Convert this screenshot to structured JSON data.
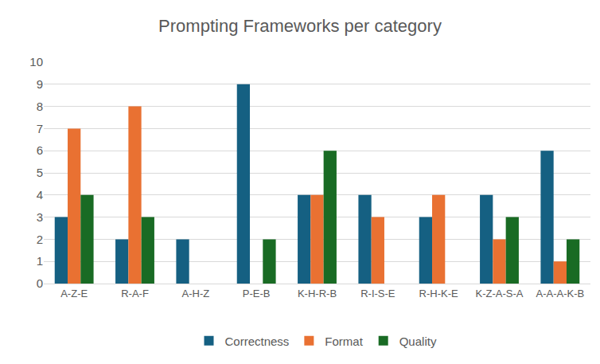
{
  "chart_data": {
    "type": "bar",
    "title": "Prompting Frameworks per category",
    "categories": [
      "A-Z-E",
      "R-A-F",
      "A-H-Z",
      "P-E-B",
      "K-H-R-B",
      "R-I-S-E",
      "R-H-K-E",
      "K-Z-A-S-A",
      "A-A-A-K-B"
    ],
    "series": [
      {
        "name": "Correctness",
        "color": "#156082",
        "values": [
          3,
          2,
          2,
          9,
          4,
          4,
          3,
          4,
          6
        ]
      },
      {
        "name": "Format",
        "color": "#E97132",
        "values": [
          7,
          8,
          0,
          0,
          4,
          3,
          4,
          2,
          1
        ]
      },
      {
        "name": "Quality",
        "color": "#196B24",
        "values": [
          4,
          3,
          0,
          2,
          6,
          0,
          0,
          3,
          2
        ]
      }
    ],
    "ylim": [
      0,
      10
    ],
    "yticks": [
      0,
      1,
      2,
      3,
      4,
      5,
      6,
      7,
      8,
      9,
      10
    ],
    "grid": true,
    "legend": "bottom"
  }
}
